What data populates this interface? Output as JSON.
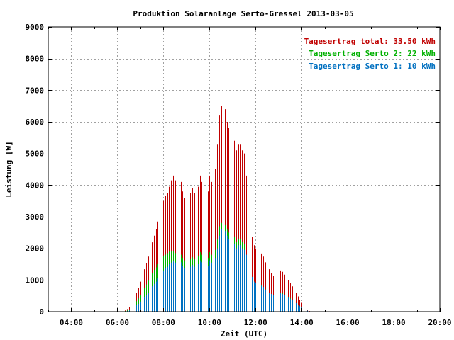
{
  "chart_data": {
    "type": "bar",
    "title": "Produktion Solaranlage Serto-Gressel 2013-03-05",
    "xlabel": "Zeit (UTC)",
    "ylabel": "Leistung [W]",
    "xlim": [
      3.0,
      20.0
    ],
    "ylim": [
      0,
      9000
    ],
    "x_ticks": [
      "04:00",
      "06:00",
      "08:00",
      "10:00",
      "12:00",
      "14:00",
      "16:00",
      "18:00",
      "20:00"
    ],
    "y_ticks": [
      "0",
      "1000",
      "2000",
      "3000",
      "4000",
      "5000",
      "6000",
      "7000",
      "8000",
      "9000"
    ],
    "grid": true,
    "stacked": true,
    "legend": [
      {
        "label": "Tagesertrag total: 33.50 kWh",
        "color": "#c00000"
      },
      {
        "label": "Tagesertrag Serto 2: 22 kWh",
        "color": "#00b000"
      },
      {
        "label": "Tagesertrag Serto 1: 10 kWh",
        "color": "#0070c0"
      }
    ],
    "legend_position": "top-right",
    "interval_minutes": 5,
    "start_time": "06:15",
    "series": [
      {
        "name": "Serto 1",
        "color": "#0070c0",
        "values": [
          0,
          10,
          20,
          40,
          60,
          100,
          150,
          200,
          250,
          320,
          380,
          450,
          520,
          600,
          700,
          800,
          880,
          950,
          1050,
          1150,
          1230,
          1300,
          1370,
          1420,
          1500,
          1550,
          1600,
          1550,
          1600,
          1500,
          1560,
          1450,
          1380,
          1500,
          1550,
          1420,
          1480,
          1420,
          1380,
          1500,
          1620,
          1560,
          1480,
          1500,
          1450,
          1620,
          1550,
          1600,
          1700,
          2000,
          2400,
          2600,
          2500,
          2550,
          2400,
          2300,
          2100,
          2200,
          2150,
          2000,
          2100,
          2100,
          2000,
          1950,
          1800,
          1600,
          1400,
          1100,
          950,
          900,
          800,
          850,
          820,
          780,
          700,
          650,
          600,
          560,
          520,
          600,
          650,
          610,
          580,
          560,
          520,
          480,
          440,
          400,
          360,
          320,
          270,
          220,
          170,
          130,
          90,
          60,
          30,
          10
        ]
      },
      {
        "name": "Serto 2",
        "color": "#00b000",
        "values": [
          0,
          20,
          40,
          70,
          110,
          170,
          250,
          330,
          420,
          530,
          640,
          750,
          860,
          980,
          1100,
          1220,
          1320,
          1400,
          1500,
          1600,
          1700,
          1750,
          1800,
          1850,
          1900,
          1900,
          1900,
          1850,
          1850,
          1750,
          1800,
          1700,
          1620,
          1750,
          1800,
          1680,
          1720,
          1680,
          1620,
          1750,
          1880,
          1800,
          1720,
          1750,
          1700,
          1880,
          1800,
          1850,
          1950,
          2300,
          2700,
          2800,
          2700,
          2750,
          2600,
          2500,
          2300,
          2400,
          2350,
          2200,
          2300,
          2300,
          2200,
          2150,
          1700,
          1450,
          1250,
          1050,
          950,
          900,
          820,
          860,
          830,
          780,
          700,
          650,
          600,
          550,
          500,
          620,
          680,
          640,
          600,
          580,
          540,
          500,
          460,
          420,
          370,
          320,
          270,
          220,
          170,
          130,
          90,
          60,
          30,
          10
        ]
      },
      {
        "name": "Total",
        "color": "#c00000",
        "values": [
          0,
          40,
          80,
          140,
          220,
          330,
          460,
          600,
          760,
          950,
          1140,
          1340,
          1530,
          1740,
          1960,
          2190,
          2400,
          2600,
          2850,
          3100,
          3350,
          3500,
          3650,
          3750,
          3950,
          4150,
          4300,
          4150,
          4200,
          3950,
          4100,
          3800,
          3600,
          3950,
          4100,
          3750,
          3900,
          3750,
          3600,
          3950,
          4300,
          4100,
          3900,
          3950,
          3800,
          4300,
          4100,
          4200,
          4500,
          5300,
          6200,
          6500,
          6300,
          6400,
          6000,
          5800,
          5300,
          5500,
          5400,
          5100,
          5300,
          5300,
          5100,
          5000,
          4300,
          3600,
          2950,
          2350,
          2100,
          2000,
          1820,
          1900,
          1840,
          1740,
          1560,
          1450,
          1340,
          1230,
          1120,
          1350,
          1460,
          1380,
          1300,
          1260,
          1170,
          1080,
          990,
          900,
          800,
          700,
          590,
          480,
          370,
          280,
          190,
          120,
          60,
          20
        ]
      }
    ]
  }
}
